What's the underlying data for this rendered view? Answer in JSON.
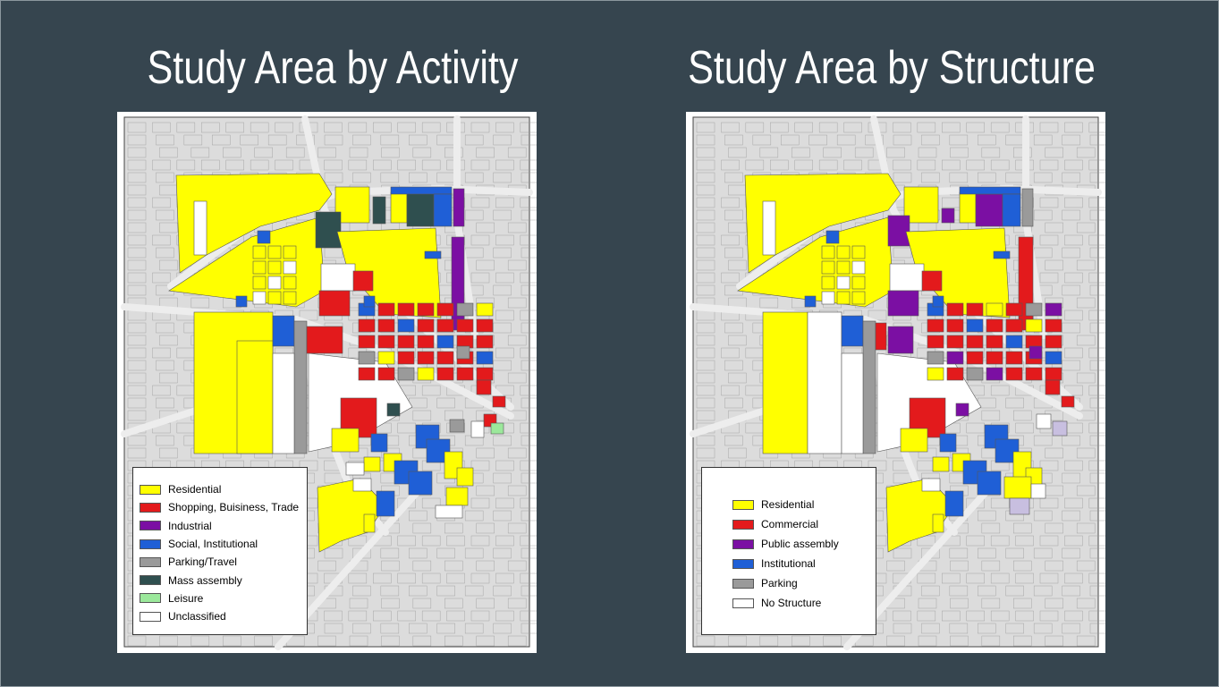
{
  "left_panel": {
    "title": "Study Area by Activity",
    "legend": [
      {
        "label": "Residential",
        "color": "#ffff00"
      },
      {
        "label": "Shopping, Buisiness, Trade",
        "color": "#e31a1c"
      },
      {
        "label": "Industrial",
        "color": "#7b0fa3"
      },
      {
        "label": "Social, Institutional",
        "color": "#1f5fd6"
      },
      {
        "label": "Parking/Travel",
        "color": "#9a9a9a"
      },
      {
        "label": "Mass assembly",
        "color": "#2f4f4f"
      },
      {
        "label": "Leisure",
        "color": "#9be89b"
      },
      {
        "label": "Unclassified",
        "color": "#ffffff"
      }
    ]
  },
  "right_panel": {
    "title": "Study Area by Structure",
    "legend": [
      {
        "label": "Residential",
        "color": "#ffff00"
      },
      {
        "label": "Commercial",
        "color": "#e31a1c"
      },
      {
        "label": "Public assembly",
        "color": "#7b0fa3"
      },
      {
        "label": "Institutional",
        "color": "#1f5fd6"
      },
      {
        "label": "Parking",
        "color": "#9a9a9a"
      },
      {
        "label": "No Structure",
        "color": "#ffffff"
      }
    ]
  },
  "colors": {
    "background": "#36454f",
    "map_base": "#dcdcdc",
    "roads": "#ededed",
    "parcel_outline": "#9a9a9a"
  }
}
